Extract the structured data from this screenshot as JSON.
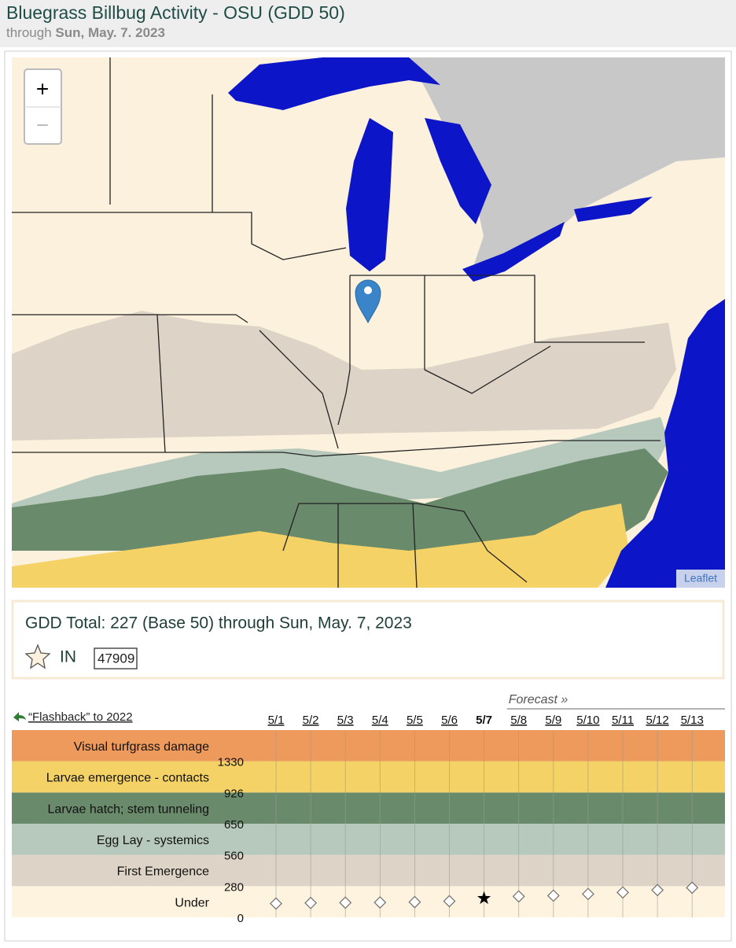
{
  "header": {
    "title": "Bluegrass Billbug Activity - OSU (GDD 50)",
    "subtitle_prefix": "through",
    "subtitle_date": "Sun, May. 7. 2023"
  },
  "map": {
    "zoom_in": "+",
    "zoom_out": "−",
    "attribution": "Leaflet"
  },
  "summary": {
    "text": "GDD Total: 227 (Base 50) through Sun, May. 7, 2023",
    "state": "IN",
    "zip": "47909"
  },
  "stage_chart": {
    "flashback": "“Flashback” to 2022",
    "forecast_label": "Forecast »",
    "stages": [
      "Under",
      "First Emergence",
      "Egg Lay - systemics",
      "Larvae hatch; stem tunneling",
      "Larvae emergence - contacts",
      "Visual turfgrass damage"
    ],
    "stage_colors": [
      "#fdf3df",
      "#ddd4c7",
      "#b7c9bc",
      "#6a8a6c",
      "#f4d265",
      "#ee9a5c"
    ],
    "ticks": [
      0,
      280,
      560,
      650,
      926,
      1330
    ],
    "observed_dates": [
      "5/1",
      "5/2",
      "5/3",
      "5/4",
      "5/5",
      "5/6",
      "5/7"
    ],
    "observed_gdd": [
      180,
      185,
      188,
      190,
      193,
      201,
      227
    ],
    "forecast_dates": [
      "5/8",
      "5/9",
      "5/10",
      "5/11",
      "5/12",
      "5/13"
    ],
    "forecast_gdd": [
      244,
      251,
      266,
      280,
      301,
      322
    ]
  }
}
